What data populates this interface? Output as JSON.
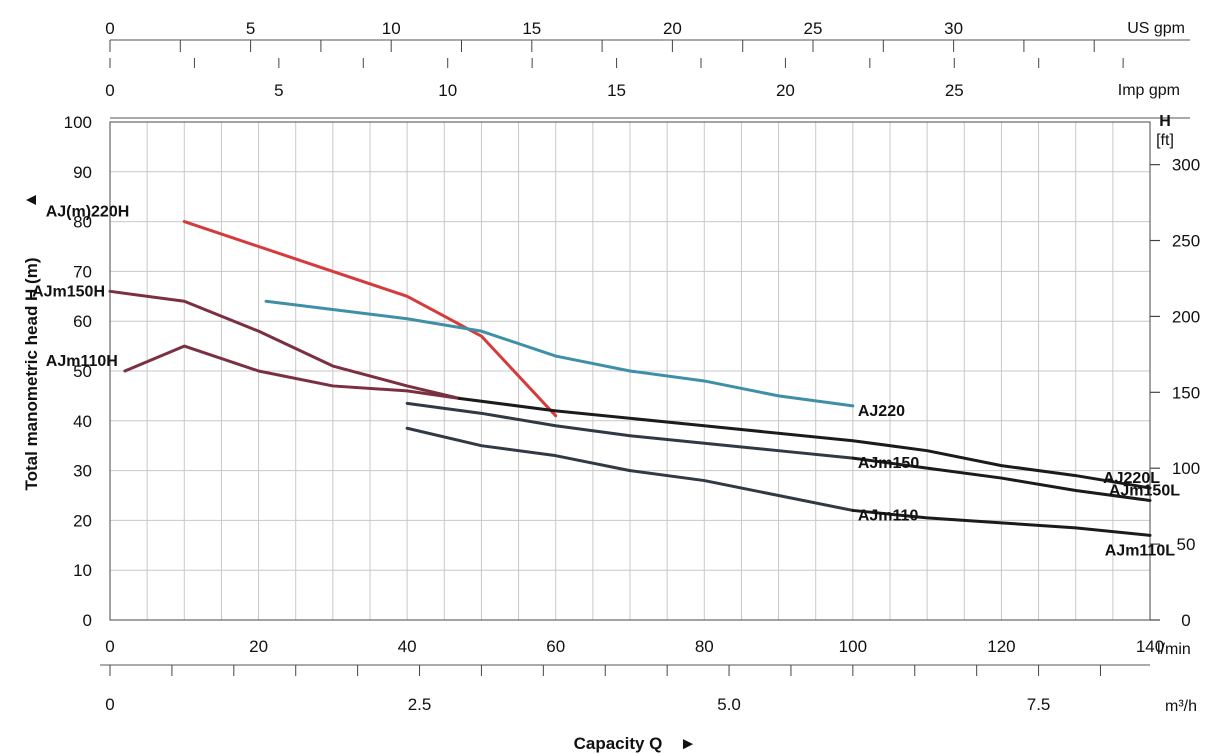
{
  "chart_data": {
    "type": "line",
    "x": {
      "label": "l/min",
      "range": [
        0,
        140
      ],
      "ticks": [
        0,
        20,
        40,
        60,
        80,
        100,
        120,
        140
      ]
    },
    "y": {
      "label": "Total manometric head H (m)",
      "arrow": "▲",
      "range": [
        0,
        100
      ],
      "ticks": [
        0,
        10,
        20,
        30,
        40,
        50,
        60,
        70,
        80,
        90,
        100
      ]
    },
    "secondary_y": {
      "label_top": "H",
      "label_unit": "[ft]",
      "ticks": [
        0,
        50,
        100,
        150,
        200,
        250,
        300
      ]
    },
    "secondary_x": [
      {
        "name": "US gpm",
        "ticks": [
          0,
          5,
          10,
          15,
          20,
          25,
          30
        ]
      },
      {
        "name": "Imp gpm",
        "ticks": [
          0,
          5,
          10,
          15,
          20,
          25
        ]
      },
      {
        "name": "m³/h",
        "ticks": [
          "0",
          "2.5",
          "5.0",
          "7.5"
        ],
        "tick_values": [
          0,
          2.5,
          5.0,
          7.5
        ]
      }
    ],
    "x_title": "Capacity Q",
    "x_title_arrow": "►",
    "grid": true,
    "series": [
      {
        "name": "AJ(m)220H",
        "color": "#d63a3a",
        "x": [
          10,
          20,
          30,
          40,
          45,
          50,
          60
        ],
        "y": [
          80,
          75,
          70,
          65,
          61,
          57,
          41
        ]
      },
      {
        "name": "AJm150H",
        "color": "#7a3040",
        "x": [
          0,
          10,
          20,
          30,
          40,
          47
        ],
        "y": [
          66,
          64,
          58,
          51,
          47,
          44.5
        ]
      },
      {
        "name": "AJm110H",
        "color": "#7a3040",
        "x": [
          2,
          10,
          20,
          30,
          40,
          47
        ],
        "y": [
          50,
          55,
          50,
          47,
          46,
          44.5
        ]
      },
      {
        "name": "AJ220",
        "color": "#3f8fa8",
        "x": [
          21,
          40,
          50,
          60,
          70,
          80,
          90,
          100
        ],
        "y": [
          64,
          60.5,
          58,
          53,
          50,
          48,
          45,
          43
        ]
      },
      {
        "name": "AJm150",
        "color": "#2f3a44",
        "x": [
          40,
          50,
          60,
          70,
          80,
          90,
          100
        ],
        "y": [
          43.5,
          41.5,
          39,
          37,
          35.5,
          34,
          32.5
        ]
      },
      {
        "name": "AJm110",
        "color": "#2f3a44",
        "x": [
          40,
          50,
          60,
          70,
          80,
          90,
          100
        ],
        "y": [
          38.5,
          35,
          33,
          30,
          28,
          25,
          22
        ]
      },
      {
        "name": "AJ220L",
        "color": "#1b1b1b",
        "x": [
          47,
          60,
          80,
          100,
          110,
          120,
          130,
          140
        ],
        "y": [
          44.5,
          42,
          39,
          36,
          34,
          31,
          29,
          26.5
        ]
      },
      {
        "name": "AJm150L",
        "color": "#1b1b1b",
        "x": [
          100,
          110,
          120,
          130,
          140
        ],
        "y": [
          32.5,
          30.5,
          28.5,
          26,
          24
        ]
      },
      {
        "name": "AJm110L",
        "color": "#1b1b1b",
        "x": [
          100,
          110,
          120,
          130,
          140
        ],
        "y": [
          22,
          20.5,
          19.5,
          18.5,
          17
        ]
      }
    ]
  }
}
